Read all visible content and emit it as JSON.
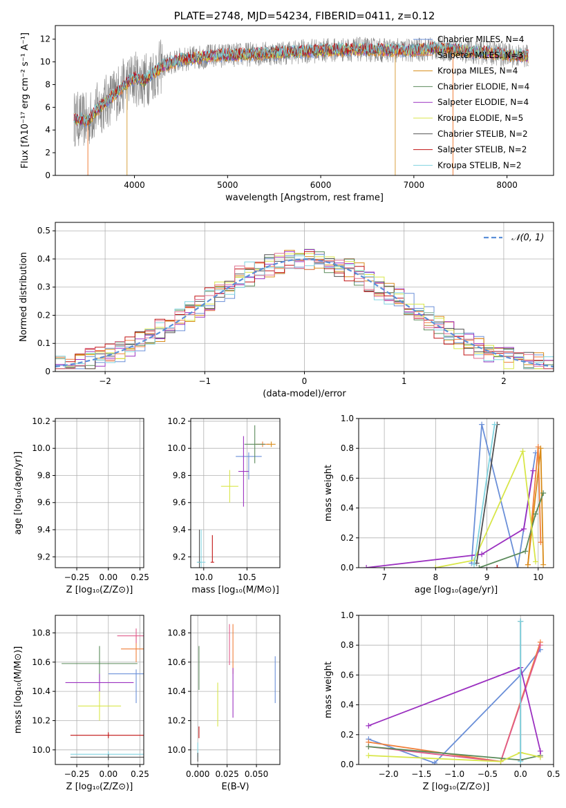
{
  "chart_data": [
    {
      "id": "spectrum",
      "type": "line",
      "title": "PLATE=2748, MJD=54234, FIBERID=0411, z=0.12",
      "xlabel": "wavelength [Angstrom, rest frame]",
      "ylabel": "Flux [fλ10⁻¹⁷ erg cm⁻² s⁻¹ A⁻¹]",
      "xlim": [
        3150,
        8500
      ],
      "ylim": [
        0,
        13.2
      ],
      "xticks": [
        4000,
        5000,
        6000,
        7000,
        8000
      ],
      "yticks": [
        0,
        2,
        4,
        6,
        8,
        10,
        12
      ],
      "grid": false,
      "legend_position": "top-right",
      "envelope": {
        "x": [
          3350,
          3500,
          3600,
          3700,
          3800,
          3900,
          4000,
          4100,
          4200,
          4300,
          4500,
          4800,
          5000,
          5300,
          5600,
          6000,
          6400,
          6800,
          7000,
          7200,
          7400,
          7600,
          7800,
          8000,
          8230
        ],
        "y": [
          5.0,
          4.8,
          5.8,
          6.5,
          7.2,
          8.0,
          8.6,
          8.3,
          9.0,
          9.6,
          10.2,
          10.5,
          10.6,
          10.7,
          10.8,
          11.0,
          11.1,
          11.0,
          11.0,
          11.2,
          11.1,
          10.9,
          10.8,
          10.6,
          10.5
        ]
      },
      "series": [
        {
          "name": "Chabrier MILES, N_SSP=4",
          "color": "#6a8fd8"
        },
        {
          "name": "Salpeter MILES, N_SSP=3",
          "color": "#f07f3a"
        },
        {
          "name": "Kroupa MILES, N_SSP=4",
          "color": "#d88b18"
        },
        {
          "name": "Chabrier ELODIE, N_SSP=4",
          "color": "#5a8a5a"
        },
        {
          "name": "Salpeter ELODIE, N_SSP=4",
          "color": "#9b30c0"
        },
        {
          "name": "Kroupa ELODIE, N_SSP=5",
          "color": "#d8e648"
        },
        {
          "name": "Chabrier STELIB, N_SSP=2",
          "color": "#505050"
        },
        {
          "name": "Salpeter STELIB, N_SSP=2",
          "color": "#c01010"
        },
        {
          "name": "Kroupa STELIB, N_SSP=2",
          "color": "#7fd3e0"
        }
      ],
      "data_series_color": "#808080"
    },
    {
      "id": "residuals",
      "type": "bar",
      "xlabel": "(data-model)/error",
      "ylabel": "Normed distribution",
      "xlim": [
        -2.5,
        2.5
      ],
      "ylim": [
        0,
        0.53
      ],
      "xticks": [
        -2,
        -1,
        0,
        1,
        2
      ],
      "yticks": [
        0.0,
        0.1,
        0.2,
        0.3,
        0.4,
        0.5
      ],
      "grid": true,
      "legend": "𝒩(0, 1)",
      "legend_position": "top-right",
      "bin_width": 0.1,
      "gaussian": {
        "mean": 0,
        "sigma": 1,
        "color": "#5b8fd8"
      }
    },
    {
      "id": "age-vs-Z",
      "type": "scatter",
      "xlabel": "Z [log₁₀(Z/Z⊙)]",
      "ylabel": "age  [log₁₀(age/yr)]",
      "xlim": [
        -0.42,
        0.28
      ],
      "ylim": [
        9.12,
        10.22
      ],
      "xticks": [
        "-0.25",
        "0.00",
        "0.25"
      ],
      "yticks": [
        "9.2",
        "9.4",
        "9.6",
        "9.8",
        "10.0",
        "10.2"
      ],
      "grid": true,
      "points": [
        {
          "x": 0.22,
          "y": 9.94,
          "xerr": 0.25,
          "yerr": [
            0.17,
            0.03
          ],
          "color": "#6a8fd8"
        },
        {
          "x": 0.2,
          "y": 10.03,
          "xerr": 0.05,
          "yerr": 0.02,
          "color": "#f07f3a"
        },
        {
          "x": 0.22,
          "y": 10.03,
          "xerr": 0.03,
          "yerr": 0.02,
          "color": "#d88b18"
        },
        {
          "x": -0.07,
          "y": 10.03,
          "xerr": 0.3,
          "yerr": 0.14,
          "color": "#5a8a5a"
        },
        {
          "x": -0.07,
          "y": 9.83,
          "xerr": 0.3,
          "yerr": 0.26,
          "color": "#9b30c0"
        },
        {
          "x": 0.0,
          "y": 9.72,
          "xerr": 0.15,
          "yerr": 0.12,
          "color": "#d8e648"
        },
        {
          "x": 0.0,
          "y": 9.16,
          "xerr": 0.33,
          "yerr": 0.08,
          "color": "#505050"
        },
        {
          "x": 0.0,
          "y": 9.16,
          "xerr": 0.0,
          "yerr": 0.0,
          "color": "#c01010"
        },
        {
          "x": 0.0,
          "y": 9.16,
          "xerr": 0.3,
          "yerr": 0.2,
          "color": "#7fd3e0"
        }
      ]
    },
    {
      "id": "age-vs-mass",
      "type": "scatter",
      "xlabel": "mass [log₁₀(M/M⊙)]",
      "xlim": [
        9.85,
        10.88
      ],
      "ylim": [
        9.12,
        10.22
      ],
      "xticks": [
        "10.0",
        "10.5"
      ],
      "yticks": [
        "9.2",
        "9.4",
        "9.6",
        "9.8",
        "10.0",
        "10.2"
      ],
      "grid": true,
      "points": [
        {
          "x": 10.52,
          "y": 9.94,
          "xerr": 0.15,
          "yerr": [
            0.17,
            0.03
          ],
          "color": "#6a8fd8"
        },
        {
          "x": 10.68,
          "y": 10.03,
          "xerr": 0.08,
          "yerr": 0.02,
          "color": "#f07f3a"
        },
        {
          "x": 10.78,
          "y": 10.03,
          "xerr": 0.05,
          "yerr": 0.02,
          "color": "#d88b18"
        },
        {
          "x": 10.59,
          "y": 10.03,
          "xerr": 0.12,
          "yerr": 0.14,
          "color": "#5a8a5a"
        },
        {
          "x": 10.46,
          "y": 9.83,
          "xerr": 0.06,
          "yerr": 0.26,
          "color": "#9b30c0"
        },
        {
          "x": 10.3,
          "y": 9.72,
          "xerr": 0.1,
          "yerr": 0.12,
          "color": "#d8e648"
        },
        {
          "x": 9.95,
          "y": 9.16,
          "xerr": 0.02,
          "yerr": 0.24,
          "color": "#505050"
        },
        {
          "x": 10.1,
          "y": 9.16,
          "xerr": 0.02,
          "yerr": [
            0.0,
            0.2
          ],
          "color": "#c01010"
        },
        {
          "x": 9.97,
          "y": 9.16,
          "xerr": 0.05,
          "yerr": 0.24,
          "color": "#7fd3e0"
        }
      ]
    },
    {
      "id": "weight-vs-age",
      "type": "line",
      "xlabel": "age  [log₁₀(age/yr)]",
      "ylabel": "mass weight",
      "xlim": [
        6.5,
        10.3
      ],
      "ylim": [
        0,
        1
      ],
      "xticks": [
        "7",
        "8",
        "9",
        "10"
      ],
      "yticks": [
        "0.0",
        "0.2",
        "0.4",
        "0.6",
        "0.8",
        "1.0"
      ],
      "grid": true,
      "series": [
        {
          "color": "#6a8fd8",
          "x": [
            8.7,
            8.9,
            9.6,
            9.95
          ],
          "y": [
            0.03,
            0.96,
            0.0,
            0.77
          ]
        },
        {
          "color": "#f07f3a",
          "x": [
            9.8,
            10.0,
            10.05
          ],
          "y": [
            0.02,
            0.81,
            0.17
          ]
        },
        {
          "color": "#d88b18",
          "x": [
            9.8,
            10.05,
            10.1
          ],
          "y": [
            0.02,
            0.8,
            0.02
          ]
        },
        {
          "color": "#5a8a5a",
          "x": [
            8.85,
            9.75,
            9.95,
            10.1
          ],
          "y": [
            0.0,
            0.11,
            0.36,
            0.5
          ]
        },
        {
          "color": "#9b30c0",
          "x": [
            6.65,
            8.9,
            9.72,
            9.9
          ],
          "y": [
            0.0,
            0.09,
            0.26,
            0.65
          ]
        },
        {
          "color": "#d8e648",
          "x": [
            8.0,
            8.75,
            9.7,
            9.95
          ],
          "y": [
            0.0,
            0.05,
            0.78,
            0.04
          ]
        },
        {
          "color": "#505050",
          "x": [
            8.8,
            9.2
          ],
          "y": [
            0.03,
            0.96
          ]
        },
        {
          "color": "#c01010",
          "x": [
            9.2,
            9.2
          ],
          "y": [
            0.0,
            0.0
          ]
        },
        {
          "color": "#7fd3e0",
          "x": [
            8.75,
            9.15
          ],
          "y": [
            0.02,
            0.96
          ]
        }
      ]
    },
    {
      "id": "mass-vs-Z",
      "type": "scatter",
      "xlabel": "Z [log₁₀(Z/Z⊙)]",
      "ylabel": "mass [log₁₀(M/M⊙)]",
      "xlim": [
        -0.42,
        0.28
      ],
      "ylim": [
        9.9,
        10.92
      ],
      "xticks": [
        "-0.25",
        "0.00",
        "0.25"
      ],
      "yticks": [
        "10.0",
        "10.2",
        "10.4",
        "10.6",
        "10.8"
      ],
      "grid": true,
      "points": [
        {
          "x": 0.22,
          "y": 10.52,
          "xerr": 0.22,
          "yerr": [
            0.2,
            0.03
          ],
          "color": "#6a8fd8"
        },
        {
          "x": 0.22,
          "y": 10.69,
          "xerr": 0.12,
          "yerr": 0.09,
          "color": "#f07f3a"
        },
        {
          "x": 0.22,
          "y": 10.78,
          "xerr": 0.15,
          "yerr": 0.05,
          "color": "#e05a8a"
        },
        {
          "x": -0.07,
          "y": 10.59,
          "xerr": 0.3,
          "yerr": 0.12,
          "color": "#5a8a5a"
        },
        {
          "x": -0.07,
          "y": 10.46,
          "xerr": 0.27,
          "yerr": 0.06,
          "color": "#9b30c0"
        },
        {
          "x": -0.07,
          "y": 10.3,
          "xerr": 0.17,
          "yerr": 0.1,
          "color": "#d8e648"
        },
        {
          "x": 0.0,
          "y": 10.1,
          "xerr": 0.3,
          "yerr": 0.02,
          "color": "#c01010"
        },
        {
          "x": 0.0,
          "y": 9.97,
          "xerr": 0.3,
          "yerr": 0.02,
          "color": "#7fd3e0"
        },
        {
          "x": 0.0,
          "y": 9.95,
          "xerr": 0.3,
          "yerr": 0.02,
          "color": "#505050"
        }
      ]
    },
    {
      "id": "mass-vs-EBV",
      "type": "scatter",
      "xlabel": "E(B-V)",
      "xlim": [
        -0.006,
        0.07
      ],
      "ylim": [
        9.9,
        10.92
      ],
      "xticks": [
        "0.000",
        "0.025",
        "0.050"
      ],
      "yticks": [
        "10.0",
        "10.2",
        "10.4",
        "10.6",
        "10.8"
      ],
      "grid": true,
      "points": [
        {
          "x": 0.066,
          "y": 10.5,
          "yerr": [
            0.18,
            0.14
          ],
          "color": "#6a8fd8"
        },
        {
          "x": 0.03,
          "y": 10.69,
          "yerr": 0.17,
          "color": "#f07f3a"
        },
        {
          "x": 0.027,
          "y": 10.72,
          "yerr": 0.14,
          "color": "#e05a8a"
        },
        {
          "x": 0.03,
          "y": 10.39,
          "yerr": 0.17,
          "color": "#9b30c0"
        },
        {
          "x": 0.017,
          "y": 10.31,
          "yerr": 0.15,
          "color": "#d8e648"
        },
        {
          "x": 0.001,
          "y": 10.56,
          "yerr": 0.15,
          "color": "#5a8a5a"
        },
        {
          "x": 0.001,
          "y": 10.12,
          "yerr": 0.04,
          "color": "#c01010"
        },
        {
          "x": 0.0,
          "y": 10.0,
          "yerr": 0.05,
          "color": "#7fd3e0"
        },
        {
          "x": 0.0,
          "y": 9.95,
          "yerr": 0.03,
          "color": "#505050"
        }
      ]
    },
    {
      "id": "weight-vs-Z",
      "type": "line",
      "xlabel": "Z [log₁₀(Z/Z⊙)]",
      "ylabel": "mass weight",
      "xlim": [
        -2.45,
        0.5
      ],
      "ylim": [
        0,
        1
      ],
      "xticks": [
        "-2.0",
        "-1.5",
        "-1.0",
        "-0.5",
        "0.0",
        "0.5"
      ],
      "yticks": [
        "0.0",
        "0.2",
        "0.4",
        "0.6",
        "0.8",
        "1.0"
      ],
      "grid": true,
      "series": [
        {
          "color": "#6a8fd8",
          "x": [
            -2.3,
            -1.3,
            0.0,
            0.3
          ],
          "y": [
            0.17,
            0.01,
            0.6,
            0.77
          ]
        },
        {
          "color": "#f07f3a",
          "x": [
            -2.3,
            -0.3,
            0.3
          ],
          "y": [
            0.15,
            0.02,
            0.82
          ]
        },
        {
          "color": "#e05a8a",
          "x": [
            -2.3,
            -0.3,
            0.3
          ],
          "y": [
            0.12,
            0.02,
            0.8
          ]
        },
        {
          "color": "#5a8a5a",
          "x": [
            -2.3,
            0.0,
            0.3
          ],
          "y": [
            0.12,
            0.03,
            0.06
          ]
        },
        {
          "color": "#9b30c0",
          "x": [
            -2.3,
            0.0,
            0.3,
            0.3
          ],
          "y": [
            0.26,
            0.65,
            0.09,
            0.05
          ]
        },
        {
          "color": "#d8e648",
          "x": [
            -2.3,
            -0.3,
            0.0,
            0.3
          ],
          "y": [
            0.06,
            0.02,
            0.08,
            0.05
          ]
        },
        {
          "color": "#505050",
          "x": [
            0.0,
            0.0
          ],
          "y": [
            0.03,
            0.96
          ]
        },
        {
          "color": "#7fd3e0",
          "x": [
            0.0,
            0.0
          ],
          "y": [
            0.02,
            0.96
          ]
        }
      ]
    }
  ]
}
